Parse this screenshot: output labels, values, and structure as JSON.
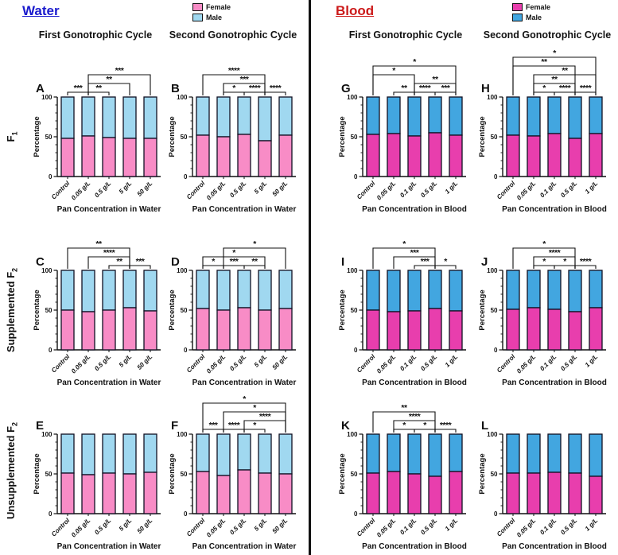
{
  "chart_data": {
    "type": "stacked-bar-grid",
    "ylabel": "Percentage",
    "ylim": [
      0,
      100
    ],
    "yticks": [
      0,
      50,
      100
    ],
    "legend_position": "top",
    "grid": false,
    "row_labels": [
      {
        "prefix": "",
        "base": "F",
        "sub": "1"
      },
      {
        "prefix": "Supplemented ",
        "base": "F",
        "sub": "2"
      },
      {
        "prefix": "Unsupplemented ",
        "base": "F",
        "sub": "2"
      }
    ],
    "sections": [
      {
        "title": "Water",
        "title_color": "#1a1acd",
        "columns": [
          "First Gonotrophic Cycle",
          "Second Gonotrophic Cycle"
        ],
        "legend": {
          "female": "Female",
          "male": "Male"
        },
        "colors": {
          "female": "#F88CC6",
          "male": "#A0D8F0"
        },
        "xlabel": "Pan Concentration in Water",
        "categories": [
          "Control",
          "0.05 g/L",
          "0.5 g/L",
          "5 g/L",
          "50 g/L"
        ]
      },
      {
        "title": "Blood",
        "title_color": "#cc1a1a",
        "columns": [
          "First Gonotrophic Cycle",
          "Second Gonotrophic Cycle"
        ],
        "legend": {
          "female": "Female",
          "male": "Male"
        },
        "colors": {
          "female": "#E83EAD",
          "male": "#42A6E0"
        },
        "xlabel": "Pan Concentration in Blood",
        "categories": [
          "Control",
          "0.05 g/L",
          "0.1 g/L",
          "0.5 g/L",
          "1 g/L"
        ]
      }
    ],
    "charts": [
      {
        "panel": "A",
        "section": 0,
        "row": 0,
        "col": 0,
        "female": [
          48,
          51,
          49,
          48,
          48
        ],
        "male": [
          52,
          49,
          51,
          52,
          52
        ],
        "brackets": [
          [
            1,
            2,
            "***",
            1
          ],
          [
            2,
            3,
            "**",
            1
          ],
          [
            2,
            4,
            "**",
            2
          ],
          [
            2,
            5,
            "***",
            3
          ]
        ]
      },
      {
        "panel": "B",
        "section": 0,
        "row": 0,
        "col": 1,
        "female": [
          52,
          50,
          53,
          45,
          52
        ],
        "male": [
          48,
          50,
          47,
          55,
          48
        ],
        "brackets": [
          [
            2,
            3,
            "*",
            1
          ],
          [
            3,
            4,
            "****",
            1
          ],
          [
            4,
            5,
            "****",
            1
          ],
          [
            2,
            4,
            "***",
            2
          ],
          [
            1,
            4,
            "****",
            3
          ]
        ]
      },
      {
        "panel": "C",
        "section": 0,
        "row": 1,
        "col": 0,
        "female": [
          50,
          48,
          50,
          53,
          49
        ],
        "male": [
          50,
          52,
          50,
          47,
          51
        ],
        "brackets": [
          [
            3,
            4,
            "**",
            1
          ],
          [
            4,
            5,
            "***",
            1
          ],
          [
            2,
            4,
            "****",
            2
          ],
          [
            1,
            4,
            "**",
            3
          ]
        ]
      },
      {
        "panel": "D",
        "section": 0,
        "row": 1,
        "col": 1,
        "female": [
          52,
          50,
          53,
          50,
          52
        ],
        "male": [
          48,
          50,
          47,
          50,
          48
        ],
        "brackets": [
          [
            1,
            2,
            "*",
            1
          ],
          [
            2,
            3,
            "***",
            1
          ],
          [
            3,
            4,
            "**",
            1
          ],
          [
            1,
            4,
            "*",
            2
          ],
          [
            2,
            5,
            "*",
            3
          ]
        ]
      },
      {
        "panel": "E",
        "section": 0,
        "row": 2,
        "col": 0,
        "female": [
          51,
          49,
          51,
          50,
          52
        ],
        "male": [
          49,
          51,
          49,
          50,
          48
        ],
        "brackets": []
      },
      {
        "panel": "F",
        "section": 0,
        "row": 2,
        "col": 1,
        "female": [
          53,
          48,
          55,
          51,
          50
        ],
        "male": [
          47,
          52,
          45,
          49,
          50
        ],
        "brackets": [
          [
            1,
            2,
            "***",
            1
          ],
          [
            2,
            3,
            "****",
            1
          ],
          [
            3,
            4,
            "*",
            1
          ],
          [
            3,
            5,
            "****",
            2
          ],
          [
            2,
            5,
            "*",
            3
          ],
          [
            1,
            5,
            "*",
            4
          ]
        ]
      },
      {
        "panel": "G",
        "section": 1,
        "row": 0,
        "col": 2,
        "female": [
          53,
          54,
          51,
          55,
          52
        ],
        "male": [
          47,
          46,
          49,
          45,
          48
        ],
        "brackets": [
          [
            2,
            3,
            "**",
            1
          ],
          [
            3,
            4,
            "****",
            1
          ],
          [
            4,
            5,
            "***",
            1
          ],
          [
            3,
            5,
            "**",
            2
          ],
          [
            1,
            3,
            "*",
            3
          ],
          [
            1,
            5,
            "*",
            4
          ]
        ]
      },
      {
        "panel": "H",
        "section": 1,
        "row": 0,
        "col": 3,
        "female": [
          52,
          51,
          54,
          48,
          54
        ],
        "male": [
          48,
          49,
          46,
          52,
          46
        ],
        "brackets": [
          [
            2,
            3,
            "*",
            1
          ],
          [
            3,
            4,
            "****",
            1
          ],
          [
            4,
            5,
            "****",
            1
          ],
          [
            2,
            4,
            "**",
            2
          ],
          [
            2,
            5,
            "**",
            3
          ],
          [
            1,
            4,
            "**",
            4
          ],
          [
            1,
            5,
            "*",
            5
          ]
        ]
      },
      {
        "panel": "I",
        "section": 1,
        "row": 1,
        "col": 2,
        "female": [
          50,
          48,
          49,
          52,
          49
        ],
        "male": [
          50,
          52,
          51,
          48,
          51
        ],
        "brackets": [
          [
            3,
            4,
            "***",
            1
          ],
          [
            4,
            5,
            "*",
            1
          ],
          [
            2,
            4,
            "***",
            2
          ],
          [
            1,
            4,
            "*",
            3
          ]
        ]
      },
      {
        "panel": "J",
        "section": 1,
        "row": 1,
        "col": 3,
        "female": [
          51,
          53,
          51,
          48,
          53
        ],
        "male": [
          49,
          47,
          49,
          52,
          47
        ],
        "brackets": [
          [
            2,
            3,
            "*",
            1
          ],
          [
            3,
            4,
            "*",
            1
          ],
          [
            4,
            5,
            "****",
            1
          ],
          [
            2,
            4,
            "****",
            2
          ],
          [
            1,
            4,
            "*",
            3
          ]
        ]
      },
      {
        "panel": "K",
        "section": 1,
        "row": 2,
        "col": 2,
        "female": [
          51,
          53,
          50,
          47,
          53
        ],
        "male": [
          49,
          47,
          50,
          53,
          47
        ],
        "brackets": [
          [
            2,
            3,
            "*",
            1
          ],
          [
            3,
            4,
            "*",
            1
          ],
          [
            4,
            5,
            "****",
            1
          ],
          [
            2,
            4,
            "****",
            2
          ],
          [
            1,
            4,
            "**",
            3
          ]
        ]
      },
      {
        "panel": "L",
        "section": 1,
        "row": 2,
        "col": 3,
        "female": [
          51,
          51,
          52,
          51,
          47
        ],
        "male": [
          49,
          49,
          48,
          49,
          53
        ],
        "brackets": []
      }
    ]
  }
}
